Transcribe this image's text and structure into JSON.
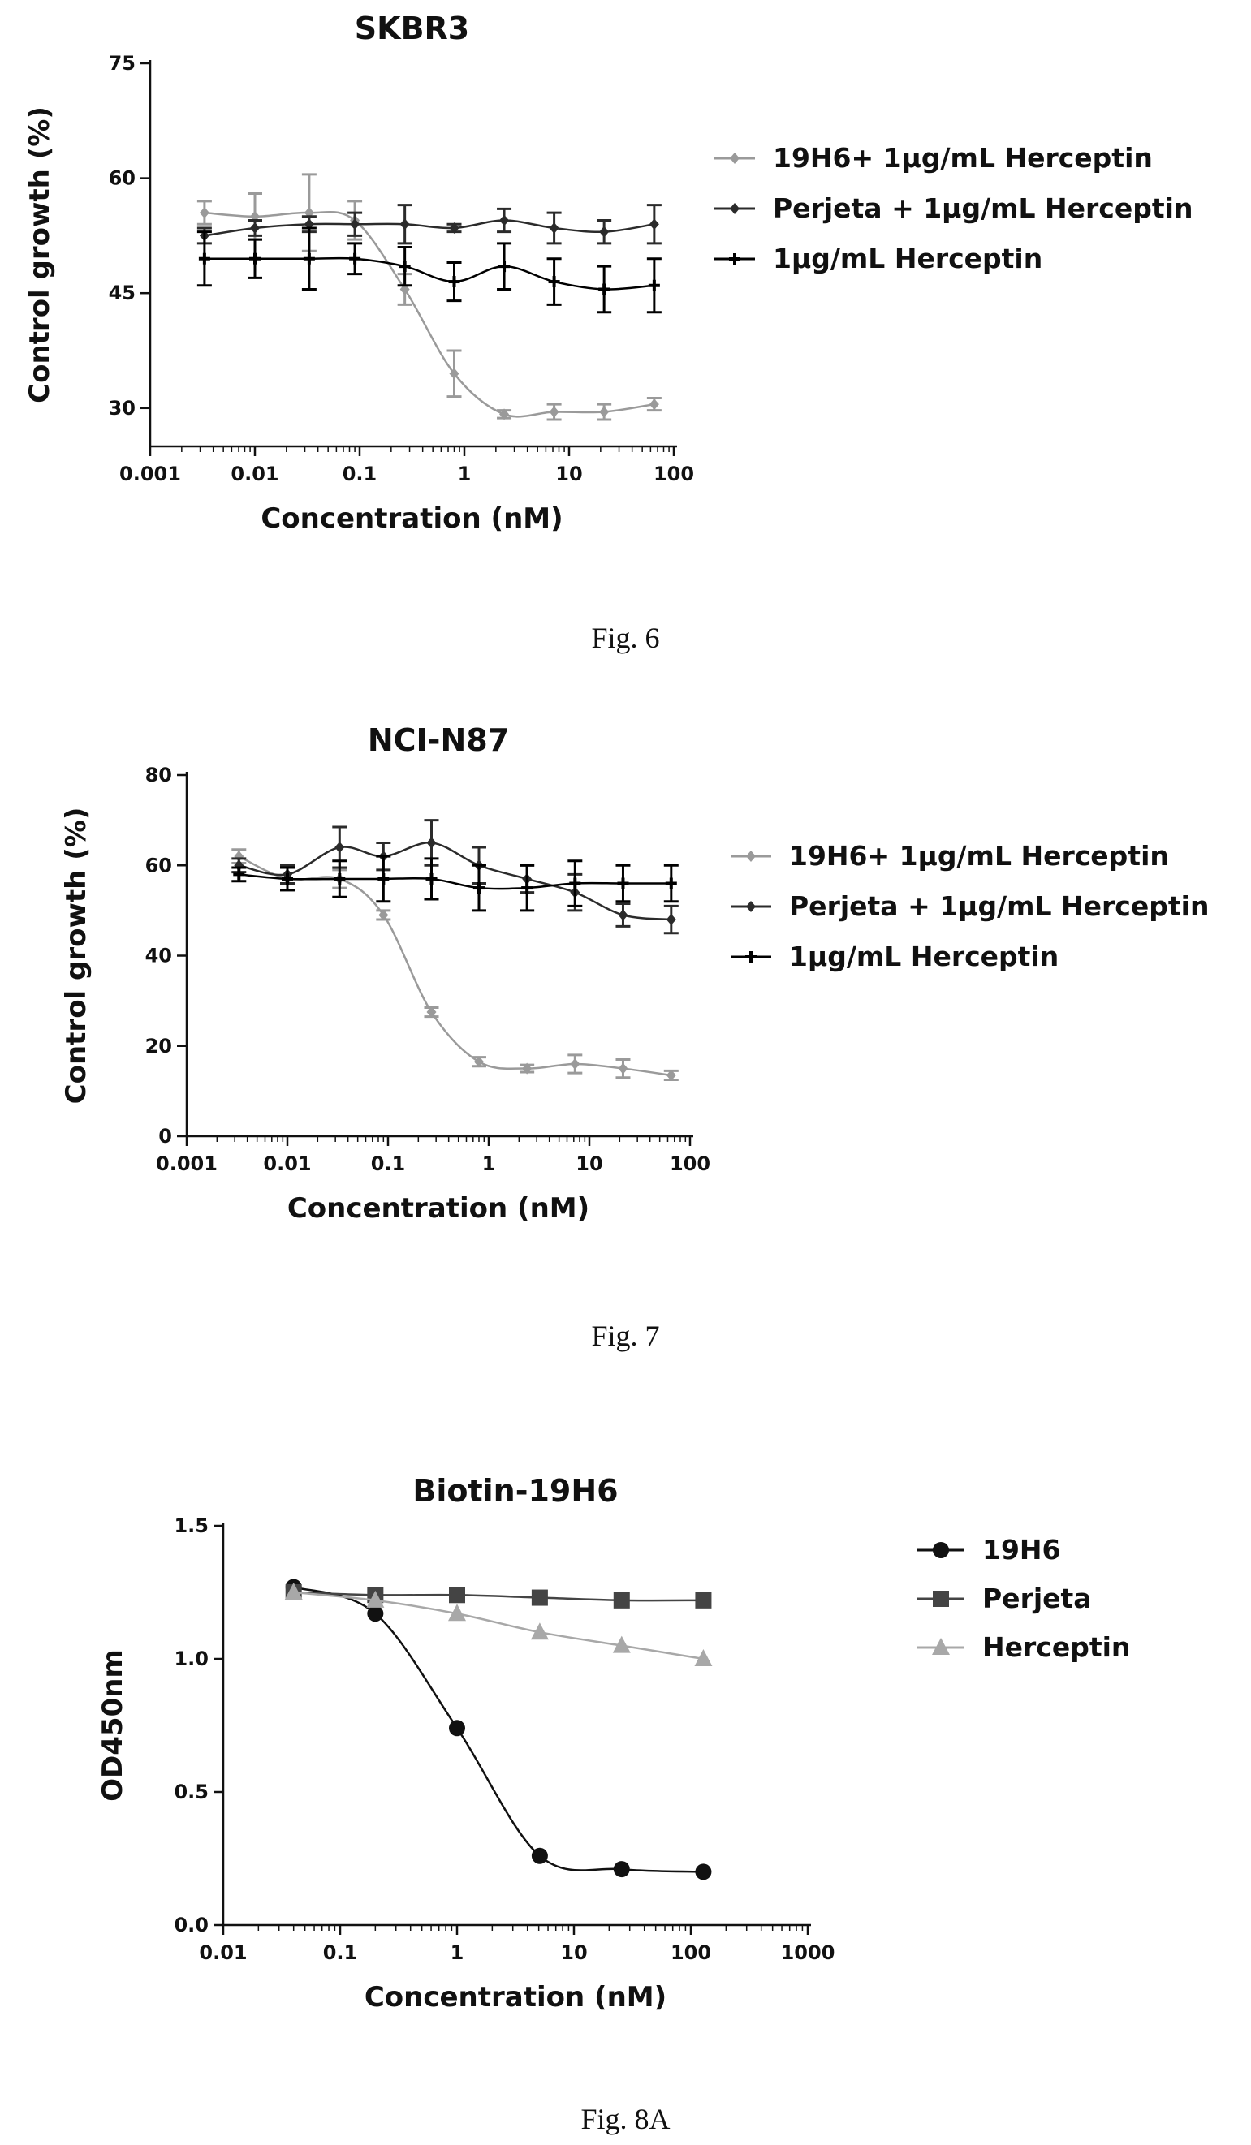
{
  "chart_data": [
    {
      "type": "line",
      "title": "SKBR3",
      "xlabel": "Concentration (nM)",
      "ylabel": "Control growth (%)",
      "xscale": "log",
      "xlim": [
        0.001,
        100
      ],
      "ylim": [
        25,
        75
      ],
      "xticks": [
        "0.001",
        "0.01",
        "0.1",
        "1",
        "10",
        "100"
      ],
      "yticks": [
        "30",
        "45",
        "60",
        "75"
      ],
      "legend_position": "right",
      "caption": "Fig. 6",
      "series": [
        {
          "name": "19H6+ 1μg/mL Herceptin",
          "color": "#9a9a9a",
          "marker": "diamond",
          "x": [
            0.0033,
            0.01,
            0.033,
            0.09,
            0.27,
            0.8,
            2.4,
            7.2,
            21.6,
            65
          ],
          "y": [
            55.5,
            55,
            55.5,
            54.5,
            45.5,
            34.5,
            29.2,
            29.5,
            29.5,
            30.5
          ],
          "err": [
            1.5,
            3,
            5,
            2.5,
            2,
            3,
            0.5,
            1,
            1,
            0.8
          ]
        },
        {
          "name": "Perjeta + 1μg/mL Herceptin",
          "color": "#2b2b2b",
          "marker": "diamond",
          "x": [
            0.0033,
            0.01,
            0.033,
            0.09,
            0.27,
            0.8,
            2.4,
            7.2,
            21.6,
            65
          ],
          "y": [
            52.5,
            53.5,
            54,
            54,
            54,
            53.5,
            54.5,
            53.5,
            53,
            54
          ],
          "err": [
            1,
            1,
            1,
            1.5,
            2.5,
            0.5,
            1.5,
            2,
            1.5,
            2.5
          ]
        },
        {
          "name": "1μg/mL Herceptin",
          "color": "#000000",
          "marker": "cross",
          "x": [
            0.0033,
            0.01,
            0.033,
            0.09,
            0.27,
            0.8,
            2.4,
            7.2,
            21.6,
            65
          ],
          "y": [
            49.5,
            49.5,
            49.5,
            49.5,
            48.5,
            46.5,
            48.5,
            46.5,
            45.5,
            46
          ],
          "err": [
            3.5,
            2.5,
            4,
            2,
            2.5,
            2.5,
            3,
            3,
            3,
            3.5
          ]
        }
      ]
    },
    {
      "type": "line",
      "title": "NCI-N87",
      "xlabel": "Concentration (nM)",
      "ylabel": "Control growth (%)",
      "xscale": "log",
      "xlim": [
        0.001,
        100
      ],
      "ylim": [
        0,
        80
      ],
      "xticks": [
        "0.001",
        "0.01",
        "0.1",
        "1",
        "10",
        "100"
      ],
      "yticks": [
        "0",
        "20",
        "40",
        "60",
        "80"
      ],
      "legend_position": "right",
      "caption": "Fig. 7",
      "series": [
        {
          "name": "19H6+ 1μg/mL Herceptin",
          "color": "#9a9a9a",
          "marker": "diamond",
          "x": [
            0.0033,
            0.01,
            0.033,
            0.09,
            0.27,
            0.8,
            2.4,
            7.2,
            21.6,
            65
          ],
          "y": [
            62,
            57,
            57,
            49,
            27.5,
            16.5,
            15,
            16,
            15,
            13.5
          ],
          "err": [
            1.5,
            2.5,
            2,
            1,
            1,
            1,
            0.8,
            2,
            2,
            1
          ]
        },
        {
          "name": "Perjeta + 1μg/mL Herceptin",
          "color": "#2b2b2b",
          "marker": "diamond",
          "x": [
            0.0033,
            0.01,
            0.033,
            0.09,
            0.27,
            0.8,
            2.4,
            7.2,
            21.6,
            65
          ],
          "y": [
            60,
            58,
            64,
            62,
            65,
            60,
            57,
            54,
            49,
            48
          ],
          "err": [
            1.5,
            2,
            4.5,
            3,
            5,
            4,
            3,
            4,
            2.5,
            3
          ]
        },
        {
          "name": "1μg/mL Herceptin",
          "color": "#000000",
          "marker": "cross",
          "x": [
            0.0033,
            0.01,
            0.033,
            0.09,
            0.27,
            0.8,
            2.4,
            7.2,
            21.6,
            65
          ],
          "y": [
            58,
            57,
            57,
            57,
            57,
            55,
            55,
            56,
            56,
            56
          ],
          "err": [
            1.5,
            2.5,
            4,
            5,
            4.5,
            5,
            5,
            5,
            4,
            4
          ]
        }
      ]
    },
    {
      "type": "line",
      "title": "Biotin-19H6",
      "xlabel": "Concentration (nM)",
      "ylabel": "OD450nm",
      "xscale": "log",
      "xlim": [
        0.01,
        1000
      ],
      "ylim": [
        0,
        1.5
      ],
      "xticks": [
        "0.01",
        "0.1",
        "1",
        "10",
        "100",
        "1000"
      ],
      "yticks": [
        "0.0",
        "0.5",
        "1.0",
        "1.5"
      ],
      "legend_position": "right",
      "caption": "Fig. 8A",
      "series": [
        {
          "name": "19H6",
          "color": "#111111",
          "marker": "circle",
          "x": [
            0.04,
            0.2,
            1.0,
            5.1,
            25.6,
            128
          ],
          "y": [
            1.27,
            1.17,
            0.74,
            0.26,
            0.21,
            0.2
          ]
        },
        {
          "name": "Perjeta",
          "color": "#444444",
          "marker": "square",
          "x": [
            0.04,
            0.2,
            1.0,
            5.1,
            25.6,
            128
          ],
          "y": [
            1.25,
            1.24,
            1.24,
            1.23,
            1.22,
            1.22
          ]
        },
        {
          "name": "Herceptin",
          "color": "#a8a8a8",
          "marker": "triangle",
          "x": [
            0.04,
            0.2,
            1.0,
            5.1,
            25.6,
            128
          ],
          "y": [
            1.25,
            1.22,
            1.17,
            1.1,
            1.05,
            1.0
          ]
        }
      ]
    }
  ]
}
